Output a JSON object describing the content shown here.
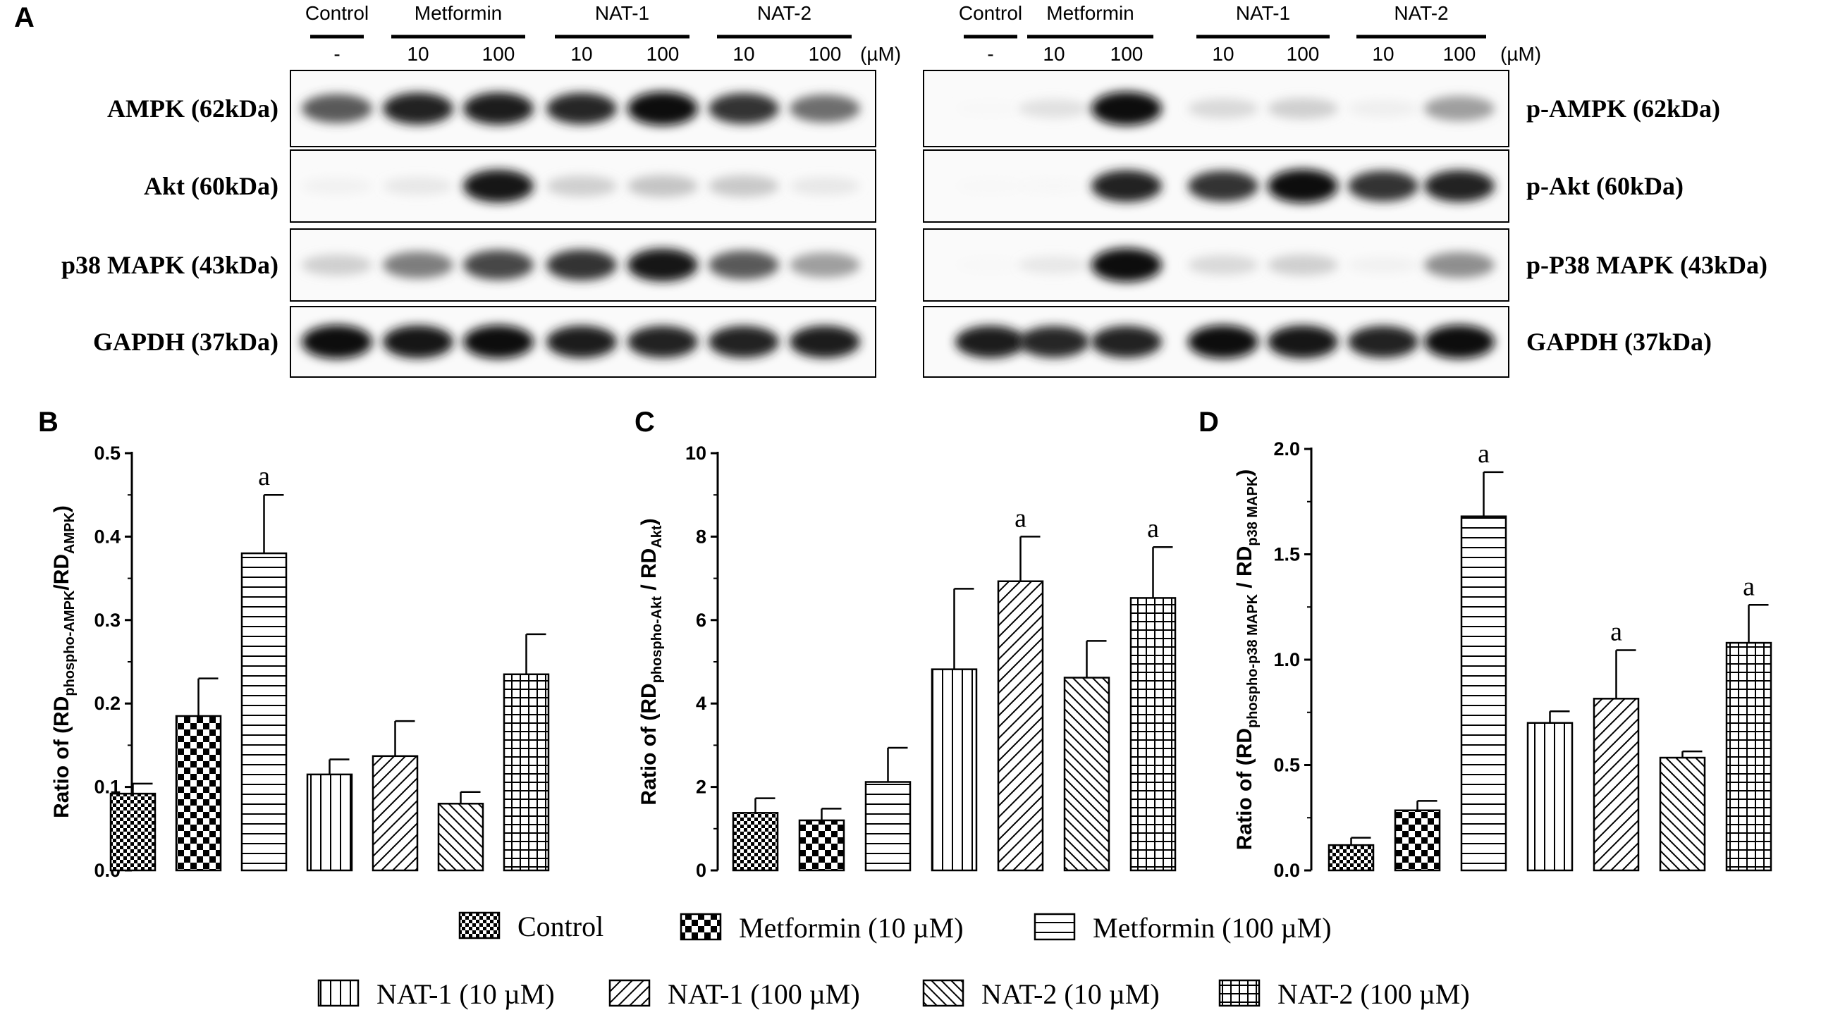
{
  "panel_letters": [
    "A",
    "B",
    "C",
    "D"
  ],
  "blot": {
    "unit": "(µM)",
    "left": {
      "groups": [
        "Control",
        "Metformin",
        "NAT-1",
        "NAT-2"
      ],
      "concentrations": [
        "-",
        "10",
        "100",
        "10",
        "100",
        "10",
        "100"
      ],
      "rows": [
        {
          "label": "AMPK (62kDa)",
          "intensity": [
            0.75,
            0.9,
            0.92,
            0.88,
            1.0,
            0.85,
            0.7
          ]
        },
        {
          "label": "Akt (60kDa)",
          "intensity": [
            0.12,
            0.2,
            0.95,
            0.35,
            0.4,
            0.38,
            0.2
          ]
        },
        {
          "label": "p38 MAPK (43kDa)",
          "intensity": [
            0.35,
            0.65,
            0.8,
            0.85,
            0.95,
            0.75,
            0.55
          ]
        },
        {
          "label": "GAPDH (37kDa)",
          "intensity": [
            1.0,
            0.95,
            0.98,
            0.92,
            0.9,
            0.9,
            0.92
          ]
        }
      ]
    },
    "right": {
      "groups": [
        "Control",
        "Metformin",
        "NAT-1",
        "NAT-2"
      ],
      "concentrations": [
        "-",
        "10",
        "100",
        "10",
        "100",
        "10",
        "100"
      ],
      "rows": [
        {
          "label": "p-AMPK (62kDa)",
          "intensity": [
            0.02,
            0.25,
            1.0,
            0.3,
            0.35,
            0.15,
            0.55
          ]
        },
        {
          "label": "p-Akt (60kDa)",
          "intensity": [
            0.03,
            0.05,
            0.9,
            0.85,
            1.0,
            0.85,
            0.9
          ]
        },
        {
          "label": "p-P38 MAPK (43kDa)",
          "intensity": [
            0.02,
            0.2,
            1.0,
            0.3,
            0.35,
            0.12,
            0.6
          ]
        },
        {
          "label": "GAPDH (37kDa)",
          "intensity": [
            0.92,
            0.88,
            0.9,
            0.98,
            0.95,
            0.9,
            1.0
          ]
        }
      ]
    }
  },
  "legend": [
    {
      "label": "Control",
      "pattern": "fine-check"
    },
    {
      "label": "Metformin (10 µM)",
      "pattern": "coarse-check"
    },
    {
      "label": "Metformin (100 µM)",
      "pattern": "horizontal"
    },
    {
      "label": "NAT-1 (10 µM)",
      "pattern": "vertical"
    },
    {
      "label": "NAT-1 (100 µM)",
      "pattern": "diag-up"
    },
    {
      "label": "NAT-2 (10 µM)",
      "pattern": "diag-down"
    },
    {
      "label": "NAT-2 (100 µM)",
      "pattern": "grid"
    }
  ],
  "chart_data": [
    {
      "panel": "B",
      "type": "bar",
      "categories": [
        "Control",
        "Metformin (10 µM)",
        "Metformin (100 µM)",
        "NAT-1 (10 µM)",
        "NAT-1 (100 µM)",
        "NAT-2 (10 µM)",
        "NAT-2 (100 µM)"
      ],
      "values": [
        0.092,
        0.185,
        0.38,
        0.115,
        0.137,
        0.08,
        0.235
      ],
      "errors": [
        0.012,
        0.045,
        0.07,
        0.018,
        0.042,
        0.014,
        0.048
      ],
      "significance": [
        "",
        "",
        "a",
        "",
        "",
        "",
        ""
      ],
      "ylabel": {
        "prefix": "Ratio of (RD",
        "sub1": "phospho-AMPK",
        "mid": "/RD",
        "sub2": "AMPK",
        "suffix": ")"
      },
      "ylim": [
        0,
        0.5
      ],
      "yticks": [
        "0.0",
        "0.1",
        "0.2",
        "0.3",
        "0.4",
        "0.5"
      ]
    },
    {
      "panel": "C",
      "type": "bar",
      "categories": [
        "Control",
        "Metformin (10 µM)",
        "Metformin (100 µM)",
        "NAT-1 (10 µM)",
        "NAT-1 (100 µM)",
        "NAT-2 (10 µM)",
        "NAT-2 (100 µM)"
      ],
      "values": [
        1.38,
        1.2,
        2.12,
        4.82,
        6.93,
        4.62,
        6.53
      ],
      "errors": [
        0.35,
        0.28,
        0.82,
        1.93,
        1.07,
        0.88,
        1.22
      ],
      "significance": [
        "",
        "",
        "",
        "",
        "a",
        "",
        "a"
      ],
      "ylabel": {
        "prefix": "Ratio of (RD",
        "sub1": "phospho-Akt",
        "mid": " / RD",
        "sub2": "Akt",
        "suffix": ")"
      },
      "ylim": [
        0,
        10
      ],
      "yticks": [
        "0",
        "2",
        "4",
        "6",
        "8",
        "10"
      ]
    },
    {
      "panel": "D",
      "type": "bar",
      "categories": [
        "Control",
        "Metformin (10 µM)",
        "Metformin (100 µM)",
        "NAT-1 (10 µM)",
        "NAT-1 (100 µM)",
        "NAT-2 (10 µM)",
        "NAT-2 (100 µM)"
      ],
      "values": [
        0.12,
        0.285,
        1.68,
        0.7,
        0.815,
        0.535,
        1.08
      ],
      "errors": [
        0.035,
        0.045,
        0.21,
        0.055,
        0.23,
        0.03,
        0.18
      ],
      "significance": [
        "",
        "",
        "a",
        "",
        "a",
        "",
        "a"
      ],
      "ylabel": {
        "prefix": "Ratio of (RD",
        "sub1": "phospho-p38 MAPK",
        "mid": " / RD",
        "sub2": "p38 MAPK",
        "suffix": ")"
      },
      "ylim": [
        0,
        2.0
      ],
      "yticks": [
        "0.0",
        "0.5",
        "1.0",
        "1.5",
        "2.0"
      ]
    }
  ]
}
